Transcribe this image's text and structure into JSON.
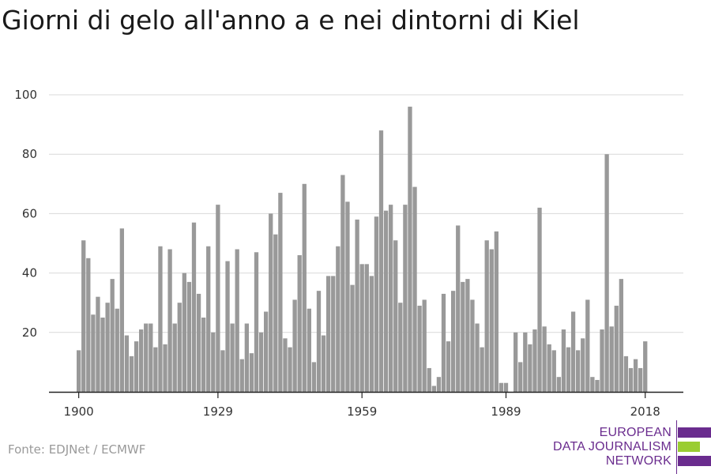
{
  "title": "Giorni di gelo all'anno a e nei dintorni di Kiel",
  "source": "Fonte: EDJNet / ECMWF",
  "logo": {
    "line1": "EUROPEAN",
    "line2": "DATA JOURNALISM",
    "line3": "NETWORK",
    "colors": {
      "purple": "#6a2c8e",
      "green": "#9acd32"
    }
  },
  "chart_data": {
    "type": "bar",
    "title": "Giorni di gelo all'anno a e nei dintorni di Kiel",
    "xlabel": "",
    "ylabel": "",
    "x_start": 1900,
    "x_end": 2018,
    "x_tick_labels": [
      "1900",
      "1929",
      "1959",
      "1989",
      "2018"
    ],
    "y_tick_labels": [
      "20",
      "40",
      "60",
      "80",
      "100"
    ],
    "ylim": [
      0,
      100
    ],
    "grid": true,
    "bar_color": "#999999",
    "values": [
      14,
      51,
      45,
      26,
      32,
      25,
      30,
      38,
      28,
      55,
      19,
      12,
      17,
      21,
      23,
      23,
      15,
      49,
      16,
      48,
      23,
      30,
      40,
      37,
      57,
      33,
      25,
      49,
      20,
      63,
      14,
      44,
      23,
      48,
      11,
      23,
      13,
      47,
      20,
      27,
      60,
      53,
      67,
      18,
      15,
      31,
      46,
      70,
      28,
      10,
      34,
      19,
      39,
      39,
      49,
      73,
      64,
      36,
      58,
      43,
      43,
      39,
      59,
      88,
      61,
      63,
      51,
      30,
      63,
      96,
      69,
      29,
      31,
      8,
      2,
      5,
      33,
      17,
      34,
      56,
      37,
      38,
      31,
      23,
      15,
      51,
      48,
      54,
      3,
      3,
      0,
      20,
      10,
      20,
      16,
      21,
      62,
      22,
      16,
      14,
      5,
      21,
      15,
      27,
      14,
      18,
      31,
      5,
      4,
      21,
      80,
      22,
      29,
      38,
      12,
      8,
      11,
      8,
      17
    ]
  }
}
